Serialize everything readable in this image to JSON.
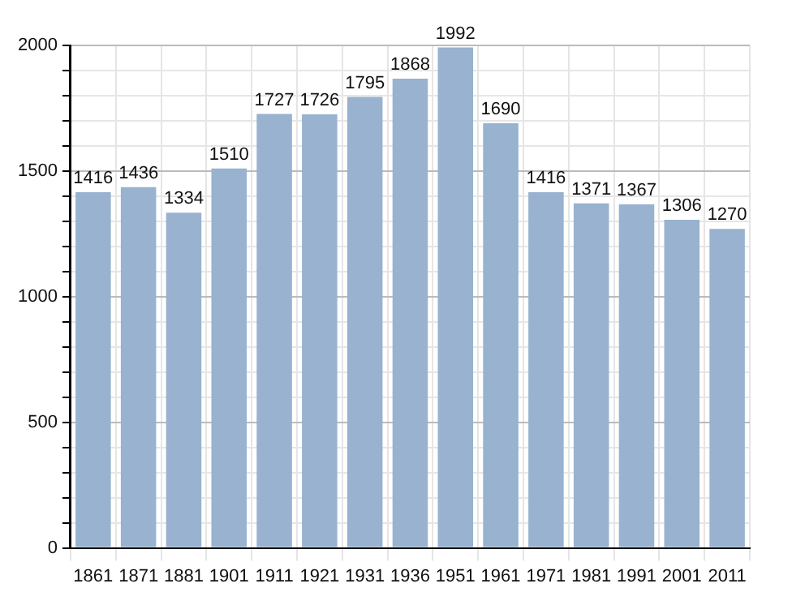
{
  "chart_data": {
    "type": "bar",
    "categories": [
      "1861",
      "1871",
      "1881",
      "1901",
      "1911",
      "1921",
      "1931",
      "1936",
      "1951",
      "1961",
      "1971",
      "1981",
      "1991",
      "2001",
      "2011"
    ],
    "values": [
      1416,
      1436,
      1334,
      1510,
      1727,
      1726,
      1795,
      1868,
      1992,
      1690,
      1416,
      1371,
      1367,
      1306,
      1270
    ],
    "color": "#98b2cf",
    "ylim": [
      0,
      2000
    ],
    "yticks": [
      0,
      {
        "value": 100,
        "label": null
      },
      {
        "value": 200,
        "label": null
      },
      {
        "value": 300,
        "label": null
      },
      {
        "value": 400,
        "label": null
      },
      500,
      {
        "value": 600,
        "label": null
      },
      {
        "value": 700,
        "label": null
      },
      {
        "value": 800,
        "label": null
      },
      {
        "value": 900,
        "label": null
      },
      1000,
      {
        "value": 1100,
        "label": null
      },
      {
        "value": 1200,
        "label": null
      },
      {
        "value": 1300,
        "label": null
      },
      {
        "value": 1400,
        "label": null
      },
      1500,
      {
        "value": 1600,
        "label": null
      },
      {
        "value": 1700,
        "label": null
      },
      {
        "value": 1800,
        "label": null
      },
      {
        "value": 1900,
        "label": null
      },
      2000
    ],
    "grid": true,
    "data_labels": true
  }
}
